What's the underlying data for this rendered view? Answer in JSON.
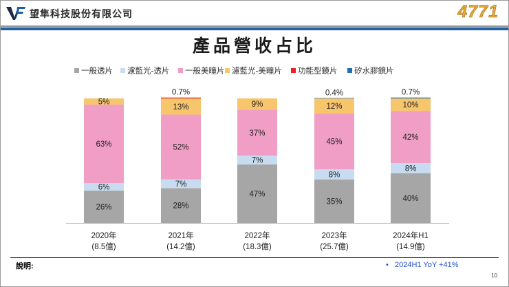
{
  "header": {
    "company": "望隼科技股份有限公司",
    "ticker": "4771"
  },
  "chart_data": {
    "type": "bar",
    "stacked": true,
    "percent": true,
    "title": "產品營收占比",
    "categories": [
      "2020年",
      "2021年",
      "2022年",
      "2023年",
      "2024年H1"
    ],
    "subcategories": [
      "(8.5億)",
      "(14.2億)",
      "(18.3億)",
      "(25.7億)",
      "(14.9億)"
    ],
    "ylim": [
      0,
      100
    ],
    "legend_position": "top",
    "series": [
      {
        "name": "一般透片",
        "color": "#a6a6a6",
        "values": [
          26,
          28,
          47,
          35,
          40
        ],
        "labels": [
          "26%",
          "28%",
          "47%",
          "35%",
          "40%"
        ]
      },
      {
        "name": "濾藍光-透片",
        "color": "#c7dcf0",
        "values": [
          6,
          7,
          7,
          8,
          8
        ],
        "labels": [
          "6%",
          "7%",
          "7%",
          "8%",
          "8%"
        ]
      },
      {
        "name": "一般美瞳片",
        "color": "#f19ec6",
        "values": [
          63,
          52,
          37,
          45,
          42
        ],
        "labels": [
          "63%",
          "52%",
          "37%",
          "45%",
          "42%"
        ]
      },
      {
        "name": "濾藍光-美瞳片",
        "color": "#f7c56c",
        "values": [
          5,
          13,
          9,
          12,
          10
        ],
        "labels": [
          "5%",
          "13%",
          "9%",
          "12%",
          "10%"
        ]
      },
      {
        "name": "功能型鏡片",
        "color": "#ee1c24",
        "values": [
          0,
          0.7,
          0,
          0,
          0
        ],
        "labels": [
          "",
          "0.7%",
          "",
          "",
          ""
        ]
      },
      {
        "name": "矽水膠鏡片",
        "color": "#1f6fb5",
        "values": [
          0,
          0,
          0,
          0.4,
          0.7
        ],
        "labels": [
          "",
          "",
          "",
          "0.4%",
          "0.7%"
        ]
      }
    ]
  },
  "footer": {
    "note_label": "說明:",
    "note": "2024H1 YoY +41%",
    "bullet": "•",
    "page": "10"
  }
}
